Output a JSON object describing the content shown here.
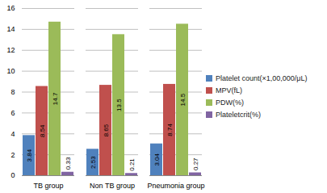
{
  "chart_data": {
    "type": "bar",
    "categories": [
      "TB group",
      "Non TB group",
      "Pneumonia group"
    ],
    "series": [
      {
        "name": "Platelet count(×1,00,000/μL)",
        "color": "#4f81bd",
        "values": [
          3.84,
          2.53,
          3.04
        ]
      },
      {
        "name": "MPV(fL)",
        "color": "#c0504d",
        "values": [
          8.54,
          8.65,
          8.74
        ]
      },
      {
        "name": "PDW(%)",
        "color": "#9bbb59",
        "values": [
          14.7,
          13.5,
          14.5
        ]
      },
      {
        "name": "Plateletcrit(%)",
        "color": "#8064a2",
        "values": [
          0.33,
          0.21,
          0.27
        ]
      }
    ],
    "ylim": [
      0,
      16
    ],
    "yticks": [
      0,
      2,
      4,
      6,
      8,
      10,
      12,
      14,
      16
    ],
    "grid": true,
    "legend": "right",
    "data_labels": true
  }
}
